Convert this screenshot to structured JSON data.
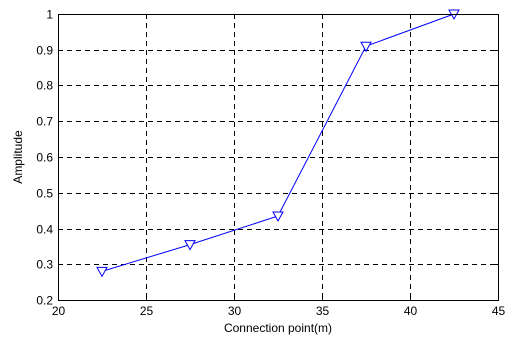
{
  "chart_data": {
    "type": "line",
    "title": "",
    "xlabel": "Connection point(m)",
    "ylabel": "Amplitude",
    "xlim": [
      20,
      45
    ],
    "ylim": [
      0.2,
      1
    ],
    "xticks": [
      20,
      25,
      30,
      35,
      40,
      45
    ],
    "yticks": [
      0.2,
      0.3,
      0.4,
      0.5,
      0.6,
      0.7,
      0.8,
      0.9,
      1
    ],
    "xtick_labels": [
      "20",
      "25",
      "30",
      "35",
      "40",
      "45"
    ],
    "ytick_labels": [
      "0.2",
      "0.3",
      "0.4",
      "0.5",
      "0.6",
      "0.7",
      "0.8",
      "0.9",
      "1"
    ],
    "grid": true,
    "grid_style": "dashed",
    "series": [
      {
        "x": [
          22.5,
          27.5,
          32.5,
          37.5,
          42.5
        ],
        "y": [
          0.28,
          0.355,
          0.435,
          0.91,
          1.0
        ],
        "color": "#0000ff",
        "marker": "triangle-down"
      }
    ]
  }
}
